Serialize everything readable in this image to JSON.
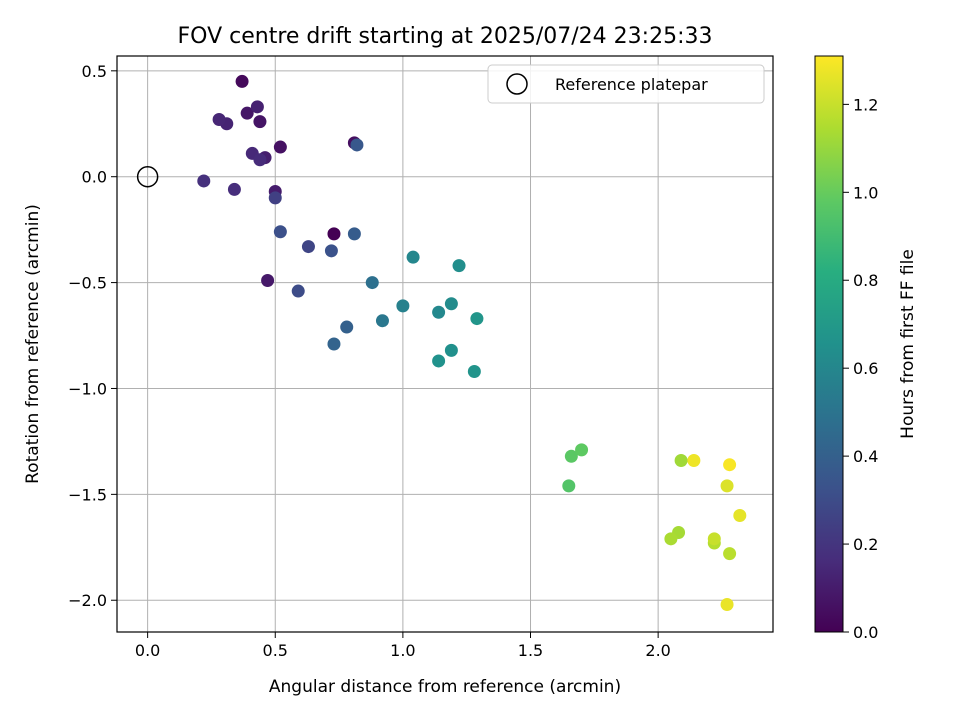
{
  "chart_data": {
    "type": "scatter",
    "title": "FOV centre drift starting at 2025/07/24 23:25:33",
    "xlabel": "Angular distance from reference (arcmin)",
    "ylabel": "Rotation from reference (arcmin)",
    "xlim": [
      -0.12,
      2.45
    ],
    "ylim": [
      -2.15,
      0.57
    ],
    "xticks": [
      0.0,
      0.5,
      1.0,
      1.5,
      2.0
    ],
    "xtick_labels": [
      "0.0",
      "0.5",
      "1.0",
      "1.5",
      "2.0"
    ],
    "yticks": [
      0.5,
      0.0,
      -0.5,
      -1.0,
      -1.5,
      -2.0
    ],
    "ytick_labels": [
      "0.5",
      "0.0",
      "−0.5",
      "−1.0",
      "−1.5",
      "−2.0"
    ],
    "grid": true,
    "legend": {
      "position": "upper right",
      "entries": [
        "Reference platepar"
      ]
    },
    "reference_point": {
      "x": 0.0,
      "y": 0.0,
      "label": "Reference platepar"
    },
    "colorbar": {
      "label": "Hours from first FF file",
      "colormap": "viridis",
      "range": [
        0.0,
        1.31
      ],
      "ticks": [
        0.0,
        0.2,
        0.4,
        0.6,
        0.8,
        1.0,
        1.2
      ],
      "tick_labels": [
        "0.0",
        "0.2",
        "0.4",
        "0.6",
        "0.8",
        "1.0",
        "1.2"
      ]
    },
    "points": [
      {
        "x": 0.73,
        "y": -0.27,
        "c": 0.0
      },
      {
        "x": 0.37,
        "y": 0.45,
        "c": 0.03
      },
      {
        "x": 0.81,
        "y": 0.16,
        "c": 0.05
      },
      {
        "x": 0.52,
        "y": 0.14,
        "c": 0.06
      },
      {
        "x": 0.44,
        "y": 0.26,
        "c": 0.07
      },
      {
        "x": 0.39,
        "y": 0.3,
        "c": 0.08
      },
      {
        "x": 0.47,
        "y": -0.49,
        "c": 0.09
      },
      {
        "x": 0.5,
        "y": -0.07,
        "c": 0.1
      },
      {
        "x": 0.46,
        "y": 0.09,
        "c": 0.11
      },
      {
        "x": 0.43,
        "y": 0.33,
        "c": 0.12
      },
      {
        "x": 0.31,
        "y": 0.25,
        "c": 0.13
      },
      {
        "x": 0.28,
        "y": 0.27,
        "c": 0.14
      },
      {
        "x": 0.41,
        "y": 0.11,
        "c": 0.15
      },
      {
        "x": 0.44,
        "y": 0.08,
        "c": 0.16
      },
      {
        "x": 0.34,
        "y": -0.06,
        "c": 0.17
      },
      {
        "x": 0.22,
        "y": -0.02,
        "c": 0.18
      },
      {
        "x": 0.5,
        "y": -0.1,
        "c": 0.25
      },
      {
        "x": 0.63,
        "y": -0.33,
        "c": 0.27
      },
      {
        "x": 0.59,
        "y": -0.54,
        "c": 0.3
      },
      {
        "x": 0.52,
        "y": -0.26,
        "c": 0.32
      },
      {
        "x": 0.72,
        "y": -0.35,
        "c": 0.33
      },
      {
        "x": 0.82,
        "y": 0.15,
        "c": 0.36
      },
      {
        "x": 0.81,
        "y": -0.27,
        "c": 0.38
      },
      {
        "x": 0.78,
        "y": -0.71,
        "c": 0.4
      },
      {
        "x": 0.73,
        "y": -0.79,
        "c": 0.42
      },
      {
        "x": 0.88,
        "y": -0.5,
        "c": 0.48
      },
      {
        "x": 0.92,
        "y": -0.68,
        "c": 0.52
      },
      {
        "x": 1.0,
        "y": -0.61,
        "c": 0.57
      },
      {
        "x": 1.04,
        "y": -0.38,
        "c": 0.6
      },
      {
        "x": 1.14,
        "y": -0.64,
        "c": 0.61
      },
      {
        "x": 1.19,
        "y": -0.6,
        "c": 0.63
      },
      {
        "x": 1.22,
        "y": -0.42,
        "c": 0.64
      },
      {
        "x": 1.19,
        "y": -0.82,
        "c": 0.65
      },
      {
        "x": 1.14,
        "y": -0.87,
        "c": 0.66
      },
      {
        "x": 1.28,
        "y": -0.92,
        "c": 0.67
      },
      {
        "x": 1.29,
        "y": -0.67,
        "c": 0.68
      },
      {
        "x": 1.65,
        "y": -1.46,
        "c": 0.95
      },
      {
        "x": 1.66,
        "y": -1.32,
        "c": 0.97
      },
      {
        "x": 1.7,
        "y": -1.29,
        "c": 0.98
      },
      {
        "x": 2.09,
        "y": -1.34,
        "c": 1.12
      },
      {
        "x": 2.08,
        "y": -1.68,
        "c": 1.13
      },
      {
        "x": 2.05,
        "y": -1.71,
        "c": 1.14
      },
      {
        "x": 2.22,
        "y": -1.73,
        "c": 1.16
      },
      {
        "x": 2.28,
        "y": -1.78,
        "c": 1.17
      },
      {
        "x": 2.22,
        "y": -1.71,
        "c": 1.2
      },
      {
        "x": 2.27,
        "y": -1.46,
        "c": 1.24
      },
      {
        "x": 2.32,
        "y": -1.6,
        "c": 1.26
      },
      {
        "x": 2.27,
        "y": -2.02,
        "c": 1.27
      },
      {
        "x": 2.14,
        "y": -1.34,
        "c": 1.28
      },
      {
        "x": 2.28,
        "y": -1.36,
        "c": 1.3
      }
    ]
  }
}
